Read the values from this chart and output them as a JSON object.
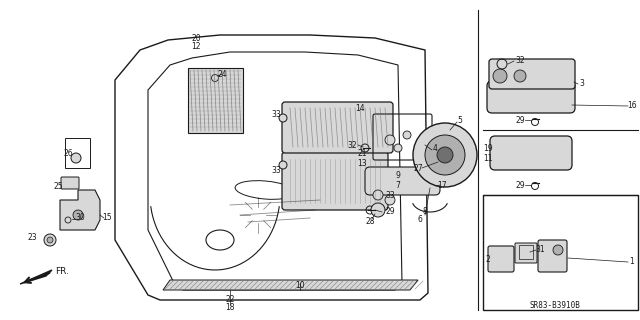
{
  "bg_color": "#ffffff",
  "line_color": "#1a1a1a",
  "gray_fill": "#b0b0b0",
  "light_gray": "#d8d8d8",
  "dark_gray": "#707070",
  "diagram_code_text": "SR83-B3910B"
}
